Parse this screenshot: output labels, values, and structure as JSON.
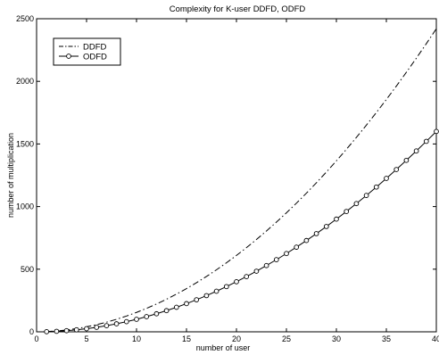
{
  "chart_data": {
    "type": "line",
    "title": "Complexity for K-user DDFD, ODFD",
    "xlabel": "number of user",
    "ylabel": "number of multiplication",
    "xlim": [
      0,
      40
    ],
    "ylim": [
      0,
      2500
    ],
    "xticks": [
      0,
      5,
      10,
      15,
      20,
      25,
      30,
      35,
      40
    ],
    "yticks": [
      0,
      500,
      1000,
      1500,
      2000,
      2500
    ],
    "grid": false,
    "legend_position": "top-left",
    "x": [
      1,
      2,
      3,
      4,
      5,
      6,
      7,
      8,
      9,
      10,
      11,
      12,
      13,
      14,
      15,
      16,
      17,
      18,
      19,
      20,
      21,
      22,
      23,
      24,
      25,
      26,
      27,
      28,
      29,
      30,
      31,
      32,
      33,
      34,
      35,
      36,
      37,
      38,
      39,
      40
    ],
    "series": [
      {
        "name": "DDFD",
        "style": "dash-dot",
        "color": "#000000",
        "values": [
          2,
          7,
          15,
          26,
          40,
          57,
          77,
          100,
          126,
          155,
          187,
          222,
          260,
          301,
          345,
          392,
          442,
          495,
          551,
          610,
          672,
          737,
          805,
          876,
          950,
          1027,
          1107,
          1190,
          1276,
          1365,
          1457,
          1552,
          1650,
          1751,
          1855,
          1962,
          2072,
          2185,
          2301,
          2420
        ]
      },
      {
        "name": "ODFD",
        "style": "solid-circle-markers",
        "color": "#000000",
        "values": [
          1,
          4,
          9,
          16,
          25,
          36,
          49,
          64,
          81,
          100,
          121,
          144,
          169,
          196,
          225,
          256,
          289,
          324,
          361,
          400,
          441,
          484,
          529,
          576,
          625,
          676,
          729,
          784,
          841,
          900,
          961,
          1024,
          1089,
          1156,
          1225,
          1296,
          1369,
          1444,
          1521,
          1600
        ]
      }
    ]
  }
}
